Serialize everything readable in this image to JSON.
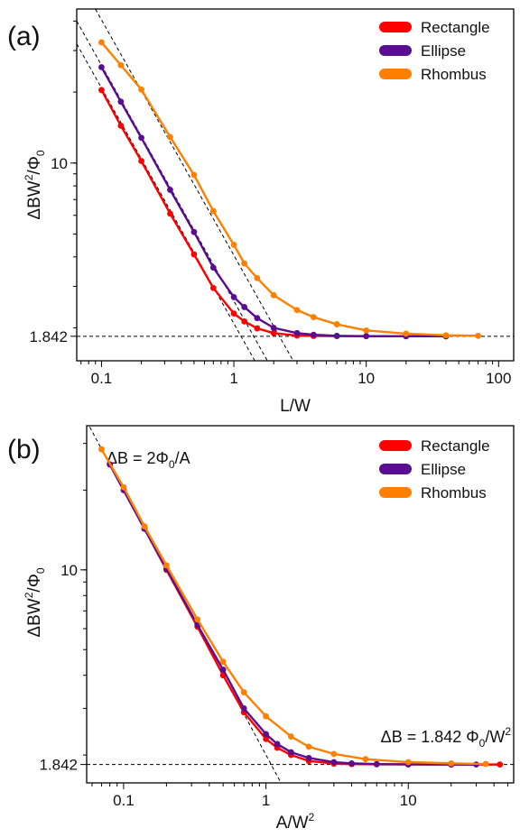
{
  "chart_data": [
    {
      "type": "line",
      "panel_label": "(a)",
      "xlabel": "L/W",
      "ylabel_main": "ΔBW",
      "ylabel_sup": "2",
      "ylabel_tail": "/Φ",
      "ylabel_sub": "0",
      "xscale": "log",
      "yscale": "log",
      "xlim": [
        0.065,
        130
      ],
      "ylim": [
        1.45,
        45
      ],
      "xticks": [
        0.1,
        1,
        10,
        100
      ],
      "xtick_labels": [
        "0.1",
        "1",
        "10",
        "100"
      ],
      "yticks": [
        1.842,
        10
      ],
      "ytick_labels": [
        "1.842",
        "10"
      ],
      "legend_position": "top-right",
      "series": [
        {
          "name": "Rectangle",
          "color": "#ff0000",
          "x": [
            0.1,
            0.14,
            0.2,
            0.33,
            0.5,
            0.7,
            1,
            1.2,
            1.5,
            2,
            3,
            4,
            6,
            10,
            20,
            40
          ],
          "y": [
            20.4,
            14.4,
            10.2,
            6.1,
            4.1,
            2.95,
            2.3,
            2.13,
            1.99,
            1.9,
            1.855,
            1.848,
            1.845,
            1.843,
            1.842,
            1.842
          ]
        },
        {
          "name": "Ellipse",
          "color": "#5a0d91",
          "x": [
            0.1,
            0.14,
            0.2,
            0.33,
            0.5,
            0.7,
            1,
            1.2,
            1.5,
            2,
            3,
            4,
            6,
            10,
            20,
            40
          ],
          "y": [
            25.5,
            18.2,
            12.8,
            7.7,
            5.1,
            3.6,
            2.7,
            2.45,
            2.2,
            2.0,
            1.9,
            1.87,
            1.85,
            1.845,
            1.843,
            1.842
          ]
        },
        {
          "name": "Rhombus",
          "color": "#ff8000",
          "x": [
            0.1,
            0.14,
            0.2,
            0.33,
            0.5,
            0.7,
            1,
            1.2,
            1.5,
            2,
            3,
            4,
            6,
            10,
            20,
            40,
            70
          ],
          "y": [
            32.5,
            26.0,
            20.5,
            12.9,
            8.9,
            6.25,
            4.5,
            3.75,
            3.25,
            2.75,
            2.38,
            2.22,
            2.07,
            1.95,
            1.89,
            1.86,
            1.85
          ]
        }
      ],
      "reference_lines": [
        {
          "type": "horizontal",
          "y": 1.842
        },
        {
          "type": "asymptote",
          "x": [
            0.065,
            1.8
          ],
          "y": [
            32.0,
            1.16
          ]
        },
        {
          "type": "asymptote",
          "x": [
            0.065,
            2.3
          ],
          "y": [
            40.0,
            1.13
          ]
        },
        {
          "type": "asymptote",
          "x": [
            0.09,
            3.6
          ],
          "y": [
            45.0,
            1.13
          ]
        }
      ]
    },
    {
      "type": "line",
      "panel_label": "(b)",
      "xlabel_main": "A/W",
      "xlabel_sup": "2",
      "ylabel_main": "ΔBW",
      "ylabel_sup": "2",
      "ylabel_tail": "/Φ",
      "ylabel_sub": "0",
      "xscale": "log",
      "yscale": "log",
      "xlim": [
        0.055,
        55
      ],
      "ylim": [
        1.57,
        35
      ],
      "xticks": [
        0.1,
        1,
        10
      ],
      "xtick_labels": [
        "0.1",
        "1",
        "10"
      ],
      "yticks": [
        1.842,
        10
      ],
      "ytick_labels": [
        "1.842",
        "10"
      ],
      "legend_position": "top-right",
      "annotations": [
        {
          "text_main": "ΔB = 2Φ",
          "text_sub": "0",
          "text_tail": "/A",
          "position": "top-left"
        },
        {
          "text_main": "ΔB = 1.842 Φ",
          "text_sub": "0",
          "text_tail": "/W",
          "text_sup": "2",
          "position": "lower-right"
        }
      ],
      "series": [
        {
          "name": "Rectangle",
          "color": "#ff0000",
          "x": [
            0.08,
            0.1,
            0.14,
            0.2,
            0.33,
            0.5,
            0.7,
            1,
            1.2,
            1.5,
            2,
            3,
            4,
            6,
            10,
            20,
            44
          ],
          "y": [
            25.0,
            20.0,
            14.3,
            10.0,
            6.1,
            4.0,
            2.9,
            2.3,
            2.13,
            2.0,
            1.9,
            1.855,
            1.848,
            1.845,
            1.843,
            1.842,
            1.842
          ]
        },
        {
          "name": "Ellipse",
          "color": "#5a0d91",
          "x": [
            0.08,
            0.1,
            0.14,
            0.2,
            0.33,
            0.5,
            0.7,
            1,
            1.2,
            1.5,
            2,
            3,
            4,
            6,
            10,
            20,
            30
          ],
          "y": [
            25.0,
            20.0,
            14.3,
            10.1,
            6.2,
            4.2,
            3.0,
            2.4,
            2.2,
            2.05,
            1.95,
            1.88,
            1.86,
            1.848,
            1.844,
            1.843,
            1.842
          ]
        },
        {
          "name": "Rhombus",
          "color": "#ff8000",
          "x": [
            0.07,
            0.1,
            0.14,
            0.2,
            0.33,
            0.5,
            0.7,
            1,
            1.5,
            2,
            3,
            5,
            10,
            20,
            35
          ],
          "y": [
            28.5,
            20.5,
            14.6,
            10.4,
            6.5,
            4.5,
            3.45,
            2.8,
            2.35,
            2.15,
            2.02,
            1.93,
            1.88,
            1.86,
            1.85
          ]
        }
      ],
      "reference_lines": [
        {
          "type": "horizontal",
          "y": 1.842
        },
        {
          "type": "asymptote",
          "x": [
            0.05,
            1.3
          ],
          "y": [
            40.0,
            1.54
          ]
        }
      ]
    }
  ]
}
